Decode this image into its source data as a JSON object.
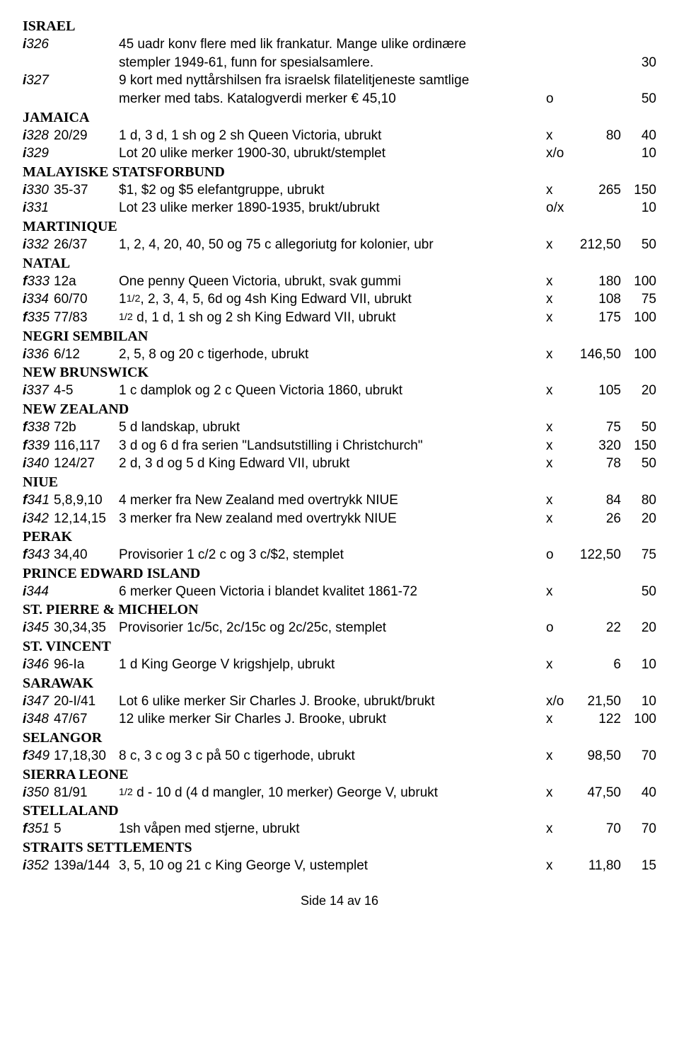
{
  "footer": "Side 14 av 16",
  "sections": [
    {
      "header": "ISRAEL",
      "entries": [
        {
          "lot_prefix": "i",
          "lot_num": "326",
          "ref": "",
          "lines": [
            "45 uadr konv flere med lik frankatur. Mange ulike ordinære",
            "stempler 1949-61, funn for spesialsamlere."
          ],
          "cond": "",
          "price1": "",
          "price2": "30"
        },
        {
          "lot_prefix": "i",
          "lot_num": "327",
          "ref": "",
          "lines": [
            "9 kort med nyttårshilsen fra israelsk filatelitjeneste samtlige",
            "merker med tabs. Katalogverdi merker € 45,10"
          ],
          "cond": "o",
          "price1": "",
          "price2": "50"
        }
      ]
    },
    {
      "header": "JAMAICA",
      "entries": [
        {
          "lot_prefix": "i",
          "lot_num": "328",
          "ref": "20/29",
          "lines": [
            "1 d, 3 d, 1 sh og 2 sh Queen Victoria, ubrukt"
          ],
          "cond": "x",
          "price1": "80",
          "price2": "40"
        },
        {
          "lot_prefix": "i",
          "lot_num": "329",
          "ref": "",
          "lines": [
            "Lot 20 ulike merker 1900-30, ubrukt/stemplet"
          ],
          "cond": "x/o",
          "price1": "",
          "price2": "10"
        }
      ]
    },
    {
      "header": "MALAYISKE STATSFORBUND",
      "entries": [
        {
          "lot_prefix": "i",
          "lot_num": "330",
          "ref": "35-37",
          "lines": [
            "$1, $2 og $5 elefantgruppe, ubrukt"
          ],
          "cond": "x",
          "price1": "265",
          "price2": "150"
        },
        {
          "lot_prefix": "i",
          "lot_num": "331",
          "ref": "",
          "lines": [
            "Lot 23 ulike merker 1890-1935, brukt/ubrukt"
          ],
          "cond": "o/x",
          "price1": "",
          "price2": "10"
        }
      ]
    },
    {
      "header": "MARTINIQUE",
      "entries": [
        {
          "lot_prefix": "i",
          "lot_num": "332",
          "ref": "26/37",
          "lines": [
            "1, 2, 4, 20, 40, 50 og 75 c allegoriutg for kolonier, ubr"
          ],
          "cond": "x",
          "price1": "212,50",
          "price2": "50"
        }
      ]
    },
    {
      "header": "NATAL",
      "entries": [
        {
          "lot_prefix": "f",
          "lot_num": "333",
          "ref": "12a",
          "lines": [
            "One penny Queen Victoria, ubrukt, svak gummi"
          ],
          "cond": "x",
          "price1": "180",
          "price2": "100"
        },
        {
          "lot_prefix": "i",
          "lot_num": "334",
          "ref": "60/70",
          "lines": [
            "1<span class=\"frac-half\">1/2</span>, 2, 3, 4, 5, 6d og 4sh King Edward VII, ubrukt"
          ],
          "cond": "x",
          "price1": "108",
          "price2": "75",
          "desc_html": true
        },
        {
          "lot_prefix": "f",
          "lot_num": "335",
          "ref": "77/83",
          "lines": [
            "<span class=\"frac-half\">1/2</span> d, 1 d, 1 sh og 2 sh King Edward VII, ubrukt"
          ],
          "cond": "x",
          "price1": "175",
          "price2": "100",
          "desc_html": true
        }
      ]
    },
    {
      "header": "NEGRI SEMBILAN",
      "entries": [
        {
          "lot_prefix": "i",
          "lot_num": "336",
          "ref": "6/12",
          "lines": [
            "2, 5, 8 og 20 c tigerhode, ubrukt"
          ],
          "cond": "x",
          "price1": "146,50",
          "price2": "100"
        }
      ]
    },
    {
      "header": "NEW BRUNSWICK",
      "entries": [
        {
          "lot_prefix": "i",
          "lot_num": "337",
          "ref": "4-5",
          "lines": [
            "1 c damplok og 2 c Queen Victoria 1860, ubrukt"
          ],
          "cond": "x",
          "price1": "105",
          "price2": "20"
        }
      ]
    },
    {
      "header": "NEW ZEALAND",
      "entries": [
        {
          "lot_prefix": "f",
          "lot_num": "338",
          "ref": "72b",
          "lines": [
            "5 d landskap, ubrukt"
          ],
          "cond": "x",
          "price1": "75",
          "price2": "50"
        },
        {
          "lot_prefix": "f",
          "lot_num": "339",
          "ref": "116,117",
          "lines": [
            "3 d og 6 d fra serien \"Landsutstilling i Christchurch\""
          ],
          "cond": "x",
          "price1": "320",
          "price2": "150"
        },
        {
          "lot_prefix": "i",
          "lot_num": "340",
          "ref": "124/27",
          "lines": [
            "2 d, 3 d og 5 d King Edward VII, ubrukt"
          ],
          "cond": "x",
          "price1": "78",
          "price2": "50"
        }
      ]
    },
    {
      "header": "NIUE",
      "entries": [
        {
          "lot_prefix": "f",
          "lot_num": "341",
          "ref": "5,8,9,10",
          "lines": [
            "4 merker fra New Zealand med overtrykk NIUE"
          ],
          "cond": "x",
          "price1": "84",
          "price2": "80"
        },
        {
          "lot_prefix": "i",
          "lot_num": "342",
          "ref": "12,14,15",
          "lines": [
            "3 merker fra New zealand med overtrykk NIUE"
          ],
          "cond": "x",
          "price1": "26",
          "price2": "20"
        }
      ]
    },
    {
      "header": "PERAK",
      "entries": [
        {
          "lot_prefix": "f",
          "lot_num": "343",
          "ref": "34,40",
          "lines": [
            "Provisorier 1 c/2 c og 3 c/$2, stemplet"
          ],
          "cond": "o",
          "price1": "122,50",
          "price2": "75"
        }
      ]
    },
    {
      "header": "PRINCE EDWARD ISLAND",
      "entries": [
        {
          "lot_prefix": "i",
          "lot_num": "344",
          "ref": "",
          "lines": [
            "6 merker Queen Victoria i blandet kvalitet 1861-72"
          ],
          "cond": "x",
          "price1": "",
          "price2": "50"
        }
      ]
    },
    {
      "header": "ST. PIERRE & MICHELON",
      "entries": [
        {
          "lot_prefix": "i",
          "lot_num": "345",
          "ref": "30,34,35",
          "lines": [
            "Provisorier 1c/5c, 2c/15c og 2c/25c, stemplet"
          ],
          "cond": "o",
          "price1": "22",
          "price2": "20"
        }
      ]
    },
    {
      "header": "ST. VINCENT",
      "entries": [
        {
          "lot_prefix": "i",
          "lot_num": "346",
          "ref": "96-Ia",
          "lines": [
            "1 d King George V krigshjelp, ubrukt"
          ],
          "cond": "x",
          "price1": "6",
          "price2": "10"
        }
      ]
    },
    {
      "header": "SARAWAK",
      "entries": [
        {
          "lot_prefix": "i",
          "lot_num": "347",
          "ref": "20-I/41",
          "lines": [
            "Lot 6 ulike merker Sir Charles J. Brooke, ubrukt/brukt"
          ],
          "cond": "x/o",
          "price1": "21,50",
          "price2": "10"
        },
        {
          "lot_prefix": "i",
          "lot_num": "348",
          "ref": "47/67",
          "lines": [
            "12 ulike merker Sir Charles J. Brooke, ubrukt"
          ],
          "cond": "x",
          "price1": "122",
          "price2": "100"
        }
      ]
    },
    {
      "header": "SELANGOR",
      "entries": [
        {
          "lot_prefix": "f",
          "lot_num": "349",
          "ref": "17,18,30",
          "lines": [
            "8 c, 3 c og 3 c på 50 c tigerhode, ubrukt"
          ],
          "cond": "x",
          "price1": "98,50",
          "price2": "70"
        }
      ]
    },
    {
      "header": "SIERRA LEONE",
      "entries": [
        {
          "lot_prefix": "i",
          "lot_num": "350",
          "ref": "81/91",
          "lines": [
            "<span class=\"frac-half\">1/2</span> d - 10 d (4 d mangler, 10 merker) George V, ubrukt"
          ],
          "cond": "x",
          "price1": "47,50",
          "price2": "40",
          "desc_html": true
        }
      ]
    },
    {
      "header": "STELLALAND",
      "entries": [
        {
          "lot_prefix": "f",
          "lot_num": "351",
          "ref": "5",
          "lines": [
            "1sh våpen med stjerne, ubrukt"
          ],
          "cond": "x",
          "price1": "70",
          "price2": "70"
        }
      ]
    },
    {
      "header": "STRAITS SETTLEMENTS",
      "entries": [
        {
          "lot_prefix": "i",
          "lot_num": "352",
          "ref": "139a/144",
          "lines": [
            "3, 5, 10 og 21 c King George V, ustemplet"
          ],
          "cond": "x",
          "price1": "11,80",
          "price2": "15"
        }
      ]
    }
  ]
}
